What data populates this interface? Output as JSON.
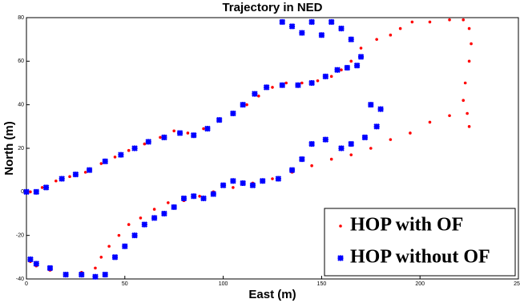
{
  "chart_data": {
    "type": "scatter",
    "title": "Trajectory in NED",
    "x_label": "East (m)",
    "y_label": "North (m)",
    "xlim": [
      0,
      250
    ],
    "ylim": [
      -40,
      80
    ],
    "xticks": [
      0,
      50,
      100,
      150,
      200,
      250
    ],
    "yticks": [
      -40,
      -20,
      0,
      20,
      40,
      60,
      80
    ],
    "legend_position": "lower right",
    "series": [
      {
        "name": "HOP with OF",
        "color": "#ff0000",
        "x": [
          2,
          8,
          15,
          22,
          30,
          38,
          45,
          52,
          60,
          68,
          75,
          82,
          90,
          98,
          105,
          112,
          118,
          125,
          132,
          140,
          148,
          155,
          160,
          165,
          170,
          178,
          185,
          190,
          196,
          205,
          215,
          222,
          225,
          226,
          225,
          223,
          222,
          224,
          225,
          215,
          205,
          195,
          185,
          175,
          165,
          155,
          145,
          135,
          125,
          115,
          105,
          95,
          88,
          80,
          72,
          65,
          58,
          52,
          47,
          42,
          38,
          35,
          28,
          20,
          12,
          5,
          2
        ],
        "values": [
          0,
          2,
          5,
          7,
          9,
          13,
          16,
          19,
          22,
          25,
          28,
          27,
          29,
          33,
          36,
          40,
          44,
          48,
          50,
          50,
          51,
          53,
          56,
          60,
          66,
          70,
          72,
          75,
          78,
          78,
          79,
          79,
          75,
          68,
          60,
          50,
          42,
          36,
          30,
          35,
          32,
          27,
          24,
          20,
          17,
          15,
          12,
          9,
          6,
          4,
          2,
          0,
          -2,
          -4,
          -5,
          -8,
          -12,
          -15,
          -20,
          -25,
          -30,
          -35,
          -37,
          -38,
          -36,
          -34,
          -32
        ]
      },
      {
        "name": "HOP without OF",
        "color": "#0000ff",
        "x": [
          0,
          5,
          10,
          18,
          25,
          32,
          40,
          48,
          55,
          62,
          70,
          78,
          85,
          92,
          98,
          105,
          110,
          116,
          122,
          130,
          138,
          145,
          152,
          158,
          163,
          168,
          170,
          165,
          160,
          155,
          150,
          145,
          140,
          135,
          130,
          175,
          180,
          178,
          172,
          165,
          160,
          152,
          145,
          140,
          135,
          128,
          120,
          115,
          110,
          105,
          100,
          95,
          90,
          85,
          80,
          75,
          70,
          65,
          60,
          55,
          50,
          45,
          40,
          35,
          28,
          20,
          12,
          5,
          2
        ],
        "values": [
          0,
          0,
          2,
          6,
          8,
          10,
          14,
          17,
          20,
          23,
          25,
          27,
          26,
          29,
          33,
          36,
          40,
          45,
          48,
          49,
          49,
          50,
          53,
          56,
          57,
          58,
          62,
          70,
          75,
          78,
          72,
          78,
          73,
          76,
          78,
          40,
          38,
          30,
          25,
          22,
          20,
          24,
          22,
          15,
          10,
          6,
          5,
          3,
          4,
          5,
          3,
          -1,
          -3,
          -2,
          -3,
          -7,
          -10,
          -12,
          -15,
          -20,
          -25,
          -30,
          -38,
          -39,
          -38,
          -38,
          -35,
          -33,
          -31
        ]
      }
    ]
  }
}
